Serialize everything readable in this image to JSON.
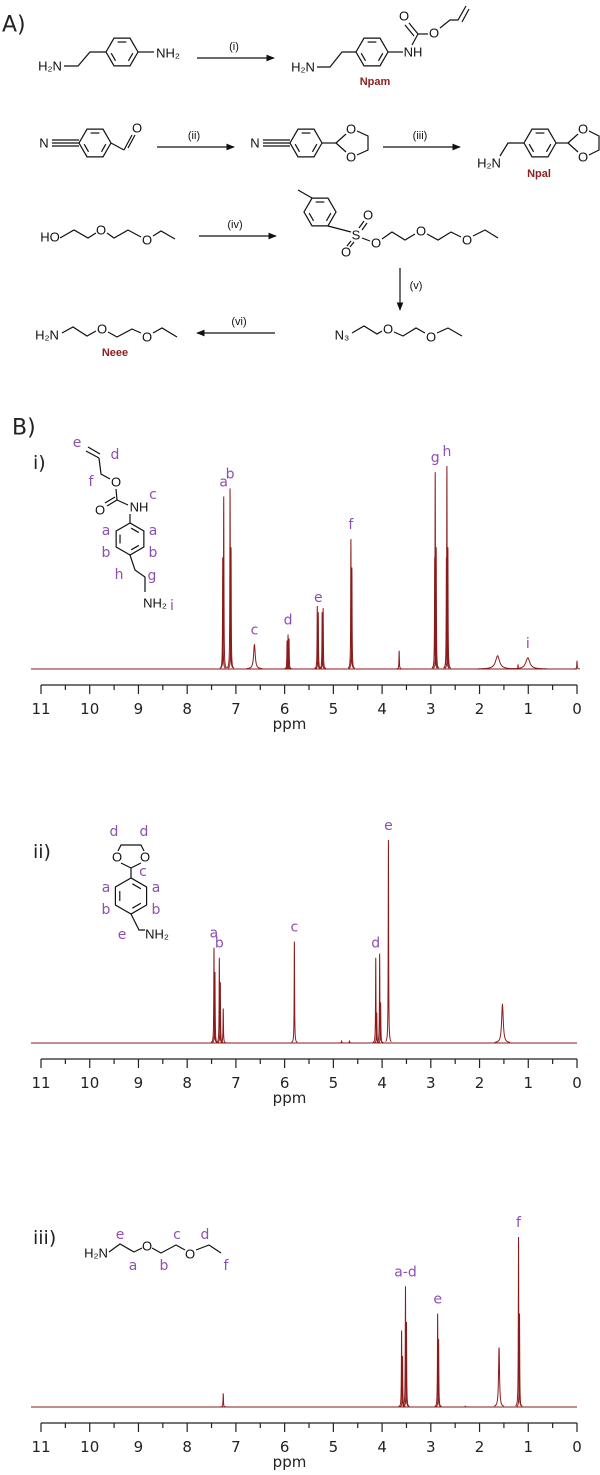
{
  "scheme": {
    "panel_label": "A)",
    "steps": [
      "(i)",
      "(ii)",
      "(iii)",
      "(iv)",
      "(v)",
      "(vi)"
    ],
    "compounds": {
      "npam": "Npam",
      "npal": "Npal",
      "neee": "Neee"
    }
  },
  "atoms": {
    "O": "O",
    "H2N": "H₂N",
    "NH2": "NH₂",
    "NH": "NH",
    "N": "N",
    "HO": "HO",
    "S": "S",
    "N3": "N₃"
  },
  "panel_b_label": "B)",
  "spectra": [
    {
      "label": "i)",
      "structure_labels": [
        "e",
        "d",
        "f",
        "c",
        "a",
        "a",
        "b",
        "b",
        "h",
        "g",
        "i"
      ]
    },
    {
      "label": "ii)",
      "structure_labels": [
        "d",
        "d",
        "c",
        "a",
        "a",
        "b",
        "b",
        "e"
      ]
    },
    {
      "label": "iii)",
      "structure_labels": [
        "e",
        "a",
        "b",
        "c",
        "d",
        "f"
      ]
    }
  ],
  "colors": {
    "spectrum": "#8b1a1a",
    "peak_labels": "#8e4fb0",
    "compound_names": "#8b1f1f"
  },
  "chart_data": [
    {
      "type": "line",
      "xlabel": "ppm",
      "xlim": [
        11,
        0
      ],
      "grid": false,
      "xticks": [
        "11",
        "10",
        "9",
        "8",
        "7",
        "6",
        "5",
        "4",
        "3",
        "2",
        "1",
        "0"
      ],
      "peaks": [
        {
          "ppm": 7.27,
          "intensity": 0.55
        },
        {
          "ppm": 7.25,
          "intensity": 0.85,
          "label": "a"
        },
        {
          "ppm": 7.12,
          "intensity": 0.89,
          "label": "b"
        },
        {
          "ppm": 7.1,
          "intensity": 0.6
        },
        {
          "ppm": 6.62,
          "intensity": 0.12,
          "width_ppm": 0.02,
          "label": "c"
        },
        {
          "ppm": 5.95,
          "intensity": 0.14
        },
        {
          "ppm": 5.93,
          "intensity": 0.17,
          "label": "d"
        },
        {
          "ppm": 5.91,
          "intensity": 0.15
        },
        {
          "ppm": 5.33,
          "intensity": 0.31
        },
        {
          "ppm": 5.31,
          "intensity": 0.28,
          "label": "e"
        },
        {
          "ppm": 5.23,
          "intensity": 0.28
        },
        {
          "ppm": 5.21,
          "intensity": 0.3
        },
        {
          "ppm": 4.64,
          "intensity": 0.64,
          "label": "f"
        },
        {
          "ppm": 4.62,
          "intensity": 0.5
        },
        {
          "ppm": 3.65,
          "intensity": 0.09
        },
        {
          "ppm": 2.92,
          "intensity": 0.55
        },
        {
          "ppm": 2.91,
          "intensity": 0.97,
          "label": "g"
        },
        {
          "ppm": 2.89,
          "intensity": 0.6
        },
        {
          "ppm": 2.68,
          "intensity": 0.55
        },
        {
          "ppm": 2.67,
          "intensity": 1.0,
          "label": "h"
        },
        {
          "ppm": 2.65,
          "intensity": 0.6
        },
        {
          "ppm": 1.63,
          "intensity": 0.065,
          "width_ppm": 0.05
        },
        {
          "ppm": 1.21,
          "intensity": 0.02
        },
        {
          "ppm": 1.01,
          "intensity": 0.055,
          "width_ppm": 0.05,
          "label": "i"
        },
        {
          "ppm": 0.0,
          "intensity": 0.04
        }
      ]
    },
    {
      "type": "line",
      "xlabel": "ppm",
      "xlim": [
        11,
        0
      ],
      "grid": false,
      "xticks": [
        "11",
        "10",
        "9",
        "8",
        "7",
        "6",
        "5",
        "4",
        "3",
        "2",
        "1",
        "0"
      ],
      "peaks": [
        {
          "ppm": 7.45,
          "intensity": 0.47,
          "label": "a"
        },
        {
          "ppm": 7.43,
          "intensity": 0.35
        },
        {
          "ppm": 7.34,
          "intensity": 0.42,
          "label": "b"
        },
        {
          "ppm": 7.32,
          "intensity": 0.3
        },
        {
          "ppm": 7.26,
          "intensity": 0.17
        },
        {
          "ppm": 5.8,
          "intensity": 0.5,
          "label": "c"
        },
        {
          "ppm": 4.83,
          "intensity": 0.01
        },
        {
          "ppm": 4.67,
          "intensity": 0.01
        },
        {
          "ppm": 4.13,
          "intensity": 0.42,
          "label": "d"
        },
        {
          "ppm": 4.11,
          "intensity": 0.15
        },
        {
          "ppm": 4.05,
          "intensity": 0.44
        },
        {
          "ppm": 4.03,
          "intensity": 0.2
        },
        {
          "ppm": 3.87,
          "intensity": 1.0,
          "label": "e"
        },
        {
          "ppm": 1.53,
          "intensity": 0.19,
          "width_ppm": 0.02
        }
      ]
    },
    {
      "type": "line",
      "xlabel": "ppm",
      "xlim": [
        11,
        0
      ],
      "grid": false,
      "xticks": [
        "11",
        "10",
        "9",
        "8",
        "7",
        "6",
        "5",
        "4",
        "3",
        "2",
        "1",
        "0"
      ],
      "peaks": [
        {
          "ppm": 7.26,
          "intensity": 0.08
        },
        {
          "ppm": 3.6,
          "intensity": 0.45
        },
        {
          "ppm": 3.58,
          "intensity": 0.3
        },
        {
          "ppm": 3.52,
          "intensity": 0.71,
          "label": "a-d"
        },
        {
          "ppm": 3.5,
          "intensity": 0.5
        },
        {
          "ppm": 2.86,
          "intensity": 0.55,
          "label": "e"
        },
        {
          "ppm": 2.84,
          "intensity": 0.4
        },
        {
          "ppm": 2.29,
          "intensity": 0.005
        },
        {
          "ppm": 1.6,
          "intensity": 0.35,
          "width_ppm": 0.012
        },
        {
          "ppm": 1.2,
          "intensity": 1.0,
          "label": "f"
        },
        {
          "ppm": 1.18,
          "intensity": 0.55
        }
      ]
    }
  ]
}
